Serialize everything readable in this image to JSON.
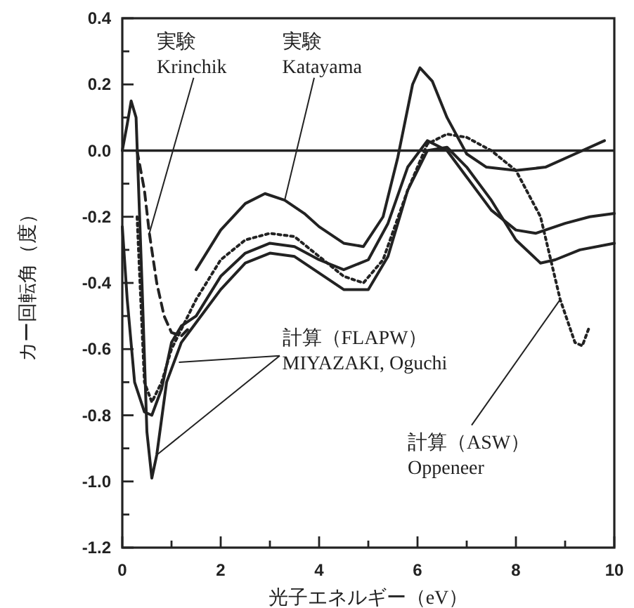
{
  "chart_data": {
    "type": "line",
    "xlabel": "光子エネルギー（eV）",
    "ylabel": "カー回転角（度）",
    "xlim": [
      0,
      10
    ],
    "ylim": [
      -1.2,
      0.4
    ],
    "xticks": [
      0,
      {
        "value": 1,
        "label": null
      },
      2,
      {
        "value": 3,
        "label": null
      },
      4,
      {
        "value": 5,
        "label": null
      },
      6,
      {
        "value": 7,
        "label": null
      },
      8,
      {
        "value": 9,
        "label": null
      },
      10
    ],
    "yticks": [
      0.4,
      {
        "value": 0.3,
        "label": null
      },
      0.2,
      {
        "value": 0.1,
        "label": null
      },
      {
        "value": 0,
        "label": "0.0"
      },
      {
        "value": -0.1,
        "label": null
      },
      -0.2,
      {
        "value": -0.3,
        "label": null
      },
      -0.4,
      {
        "value": -0.5,
        "label": null
      },
      -0.6,
      {
        "value": -0.7,
        "label": null
      },
      -0.8,
      {
        "value": -0.9,
        "label": null
      },
      {
        "value": -1,
        "label": "-1.0"
      },
      {
        "value": -1.1,
        "label": null
      },
      -1.2
    ],
    "grid": false,
    "marker": "none",
    "ref_lines": [
      {
        "axis": "y",
        "value": 0,
        "label": null,
        "color": "#222222",
        "line_style": "solid"
      }
    ],
    "series": [
      {
        "color": "#222222",
        "line_style": "dashed",
        "x": [
          0.3,
          0.45,
          0.55,
          0.7,
          0.85,
          1.0,
          1.2,
          1.4
        ],
        "values": [
          0.0,
          -0.12,
          -0.25,
          -0.4,
          -0.5,
          -0.55,
          -0.56,
          -0.53
        ]
      },
      {
        "color": "#222222",
        "line_style": "solid",
        "x": [
          1.5,
          2.0,
          2.5,
          2.9,
          3.3,
          3.7,
          4.0,
          4.5,
          4.9,
          5.3,
          5.6,
          5.9,
          6.05,
          6.3,
          6.6,
          7.0,
          7.4,
          8.0,
          8.6,
          9.2,
          9.8
        ],
        "values": [
          -0.36,
          -0.24,
          -0.16,
          -0.13,
          -0.15,
          -0.19,
          -0.23,
          -0.28,
          -0.29,
          -0.2,
          -0.02,
          0.2,
          0.25,
          0.21,
          0.1,
          -0.01,
          -0.05,
          -0.06,
          -0.05,
          -0.01,
          0.03
        ]
      },
      {
        "color": "#222222",
        "line_style": "solid",
        "x": [
          0,
          0.1,
          0.25,
          0.45,
          0.6,
          0.8,
          1.0,
          1.2,
          1.5,
          2.0,
          2.5,
          3.0,
          3.5,
          4.0,
          4.5,
          5.0,
          5.4,
          5.8,
          6.2,
          6.6,
          7.0,
          7.5,
          8.0,
          8.4,
          9.0,
          9.5,
          10.0
        ],
        "values": [
          -0.23,
          -0.45,
          -0.7,
          -0.79,
          -0.8,
          -0.72,
          -0.58,
          -0.53,
          -0.5,
          -0.38,
          -0.31,
          -0.28,
          -0.29,
          -0.33,
          -0.36,
          -0.33,
          -0.22,
          -0.05,
          0.03,
          0.0,
          -0.08,
          -0.18,
          -0.24,
          -0.25,
          -0.22,
          -0.2,
          -0.19
        ]
      },
      {
        "color": "#222222",
        "line_style": "solid",
        "x": [
          0,
          0.1,
          0.18,
          0.28,
          0.4,
          0.5,
          0.6,
          0.7,
          0.9,
          1.2,
          1.5,
          2.0,
          2.5,
          3.0,
          3.5,
          4.0,
          4.5,
          5.0,
          5.4,
          5.8,
          6.2,
          6.6,
          7.0,
          7.5,
          8.0,
          8.5,
          8.8,
          9.3,
          10.0
        ],
        "values": [
          0.0,
          0.08,
          0.15,
          0.1,
          -0.4,
          -0.85,
          -0.99,
          -0.92,
          -0.7,
          -0.58,
          -0.52,
          -0.42,
          -0.34,
          -0.31,
          -0.32,
          -0.37,
          -0.42,
          -0.42,
          -0.32,
          -0.12,
          0.0,
          0.01,
          -0.05,
          -0.15,
          -0.27,
          -0.34,
          -0.33,
          -0.3,
          -0.28
        ]
      },
      {
        "color": "#222222",
        "line_style": "dotted",
        "x": [
          0.3,
          0.45,
          0.6,
          0.8,
          1.0,
          1.5,
          2.0,
          2.5,
          3.0,
          3.5,
          4.0,
          4.5,
          4.9,
          5.3,
          5.8,
          6.2,
          6.6,
          7.0,
          7.5,
          8.0,
          8.5,
          8.9,
          9.2,
          9.35,
          9.5
        ],
        "values": [
          -0.2,
          -0.7,
          -0.76,
          -0.7,
          -0.6,
          -0.45,
          -0.33,
          -0.27,
          -0.25,
          -0.26,
          -0.32,
          -0.38,
          -0.4,
          -0.33,
          -0.12,
          0.02,
          0.05,
          0.04,
          0.0,
          -0.06,
          -0.2,
          -0.45,
          -0.58,
          -0.59,
          -0.53
        ]
      }
    ],
    "annotations": [
      {
        "text": "実験\nKrinchik",
        "x": 0.55,
        "y": -0.25
      },
      {
        "text": "実験\nKatayama",
        "x": 3.3,
        "y": -0.15
      },
      {
        "text": "計算（FLAPW）\nMIYAZAKI, Oguchi",
        "x": 0.7,
        "y": -0.92
      },
      {
        "text": "計算（ASW）\nOppeneer",
        "x": 8.9,
        "y": -0.45
      }
    ]
  }
}
